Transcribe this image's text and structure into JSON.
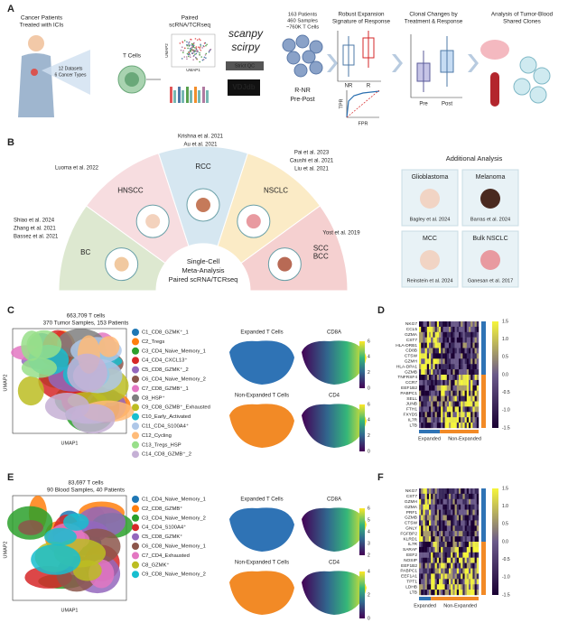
{
  "panel_labels": [
    "A",
    "B",
    "C",
    "D",
    "E",
    "F"
  ],
  "panel_a": {
    "patients": [
      "Cancer Patients",
      "Treated with ICIs"
    ],
    "datasets": [
      "12 Datasets",
      "6 Cancer Types"
    ],
    "t_cells": "T Cells",
    "paired": [
      "Paired",
      "scRNA/TCRseq"
    ],
    "umap_y": "UMAP2",
    "umap_x": "UMAP1",
    "tools": [
      "scanpy",
      "scirpy"
    ],
    "qc": "Strict QC",
    "vdjdb": "VDJdb",
    "cohort": [
      "163 Patients",
      "460 Samples",
      "~760K T Cells"
    ],
    "comparisons": [
      "R-NR",
      "Pre-Post"
    ],
    "expansion_title": [
      "Robust Expansion",
      "Signature of Response"
    ],
    "box_labels": [
      "NR",
      "R"
    ],
    "roc_y": "TPR",
    "roc_x": "FPR",
    "clonal_title": [
      "Clonal Changes by",
      "Treatment & Response"
    ],
    "time_labels": [
      "Pre",
      "Post"
    ],
    "shared_title": [
      "Analysis of Tumor-Blood",
      "Shared Clones"
    ]
  },
  "panel_b": {
    "sectors": [
      {
        "label": [
          "BC"
        ],
        "color": "#dde8d0",
        "refs": [
          "Shiao et al. 2024",
          "Zhang et al. 2021",
          "Bassez et al. 2021"
        ]
      },
      {
        "label": [
          "HNSCC"
        ],
        "color": "#f7dde0",
        "refs": [
          "Luoma et al. 2022"
        ]
      },
      {
        "label": [
          "RCC"
        ],
        "color": "#d6e7f1",
        "refs": [
          "Krishna et al. 2021",
          "Au et al. 2021"
        ]
      },
      {
        "label": [
          "NSCLC"
        ],
        "color": "#fbebc6",
        "refs": [
          "Pai et al. 2023",
          "Caushi et al. 2021",
          "Liu et al. 2021"
        ]
      },
      {
        "label": [
          "SCC",
          "BCC"
        ],
        "color": "#f5d0d0",
        "refs": [
          "Yost et al. 2019"
        ]
      }
    ],
    "center": [
      "Single-Cell",
      "Meta-Analysis",
      "Paired scRNA/TCRseq"
    ],
    "additional_title": "Additional Analysis",
    "additional": [
      {
        "name": "Glioblastoma",
        "ref": "Bagley et al. 2024"
      },
      {
        "name": "Melanoma",
        "ref": "Barras et al. 2024"
      },
      {
        "name": "MCC",
        "ref": "Reinstein et al. 2024"
      },
      {
        "name": "Bulk NSCLC",
        "ref": "Ganesan et al. 2017"
      }
    ]
  },
  "panel_c": {
    "summary": [
      "663,709 T cells",
      "370 Tumor Samples, 153 Patients"
    ],
    "umap_y": "UMAP2",
    "umap_x": "UMAP1",
    "clusters": [
      {
        "name": "C1_CD8_GZMK⁺_1",
        "color": "#1f77b4"
      },
      {
        "name": "C2_Tregs",
        "color": "#ff7f0e"
      },
      {
        "name": "C3_CD4_Naive_Memory_1",
        "color": "#2ca02c"
      },
      {
        "name": "C4_CD4_CXCL13⁺",
        "color": "#d62728"
      },
      {
        "name": "C5_CD8_GZMK⁺_2",
        "color": "#9467bd"
      },
      {
        "name": "C6_CD4_Naive_Memory_2",
        "color": "#8c564b"
      },
      {
        "name": "C7_CD8_GZMB⁺_1",
        "color": "#e377c2"
      },
      {
        "name": "C8_HSP⁺",
        "color": "#7f7f7f"
      },
      {
        "name": "C9_CD8_GZMB⁺_Exhausted",
        "color": "#bcbd22"
      },
      {
        "name": "C10_Early_Activated",
        "color": "#17becf"
      },
      {
        "name": "C11_CD4_S100A4⁺",
        "color": "#aec7e8"
      },
      {
        "name": "C12_Cycling",
        "color": "#ffbb78"
      },
      {
        "name": "C13_Tregs_HSP",
        "color": "#98df8a"
      },
      {
        "name": "C14_CD8_GZMB⁺_2",
        "color": "#c5b0d5"
      }
    ],
    "maps": [
      "Expanded T Cells",
      "CD8A",
      "Non-Expanded T Cells",
      "CD4"
    ],
    "colorbar_top": [
      "6",
      "4",
      "2",
      "0"
    ],
    "colorbar_bottom": [
      "6",
      "4",
      "2",
      "0"
    ]
  },
  "panel_d": {
    "genes": [
      "NKG7",
      "CCL5",
      "GZMA",
      "CST7",
      "HLA-DRB1",
      "CD8B",
      "CTSW",
      "GZMH",
      "HLA-DPA1",
      "GZMB",
      "TNFRSF4",
      "CCR7",
      "EEF1B2",
      "PABPC1",
      "SELL",
      "JUNB",
      "FTH1",
      "FXYD5",
      "IL7R",
      "LTB"
    ],
    "colorbar": [
      "1.5",
      "1.0",
      "0.5",
      "0.0",
      "-0.5",
      "-1.0",
      "-1.5"
    ],
    "groups": [
      "Expanded",
      "Non-Expanded"
    ]
  },
  "panel_e": {
    "summary": [
      "83,697  T cells",
      "90 Blood Samples, 40 Patients"
    ],
    "umap_y": "UMAP2",
    "umap_x": "UMAP1",
    "clusters": [
      {
        "name": "C1_CD4_Naive_Memory_1",
        "color": "#1f77b4"
      },
      {
        "name": "C2_CD8_GZMB⁺",
        "color": "#ff7f0e"
      },
      {
        "name": "C3_CD4_Naive_Memory_2",
        "color": "#2ca02c"
      },
      {
        "name": "C4_CD4_S100A4⁺",
        "color": "#d62728"
      },
      {
        "name": "C5_CD8_GZMK⁺",
        "color": "#9467bd"
      },
      {
        "name": "C6_CD8_Naive_Memory_1",
        "color": "#8c564b"
      },
      {
        "name": "C7_CD4_Exhausted",
        "color": "#e377c2"
      },
      {
        "name": "C8_GZMK⁺",
        "color": "#bcbd22"
      },
      {
        "name": "C9_CD8_Naive_Memory_2",
        "color": "#17becf"
      }
    ],
    "maps": [
      "Expanded T Cells",
      "CD8A",
      "Non-Expanded T Cells",
      "CD4"
    ],
    "colorbar_top": [
      "6",
      "5",
      "4",
      "3",
      "2"
    ],
    "colorbar_bottom": [
      "4",
      "2",
      "0"
    ]
  },
  "panel_f": {
    "genes": [
      "NKG7",
      "CST7",
      "GZMH",
      "GZMA",
      "PRF1",
      "GZMB",
      "CTSW",
      "GNLY",
      "FGFBP2",
      "KLRD1",
      "IL7R",
      "SARAF",
      "EEF2",
      "NOSIP",
      "EEF1B2",
      "PABPC1",
      "EEF1A1",
      "TPT1",
      "LDHB",
      "LTB"
    ],
    "colorbar": [
      "1.5",
      "1.0",
      "0.5",
      "0.0",
      "-0.5",
      "-1.0",
      "-1.5"
    ],
    "groups": [
      "Expanded",
      "Non-Expanded"
    ]
  }
}
